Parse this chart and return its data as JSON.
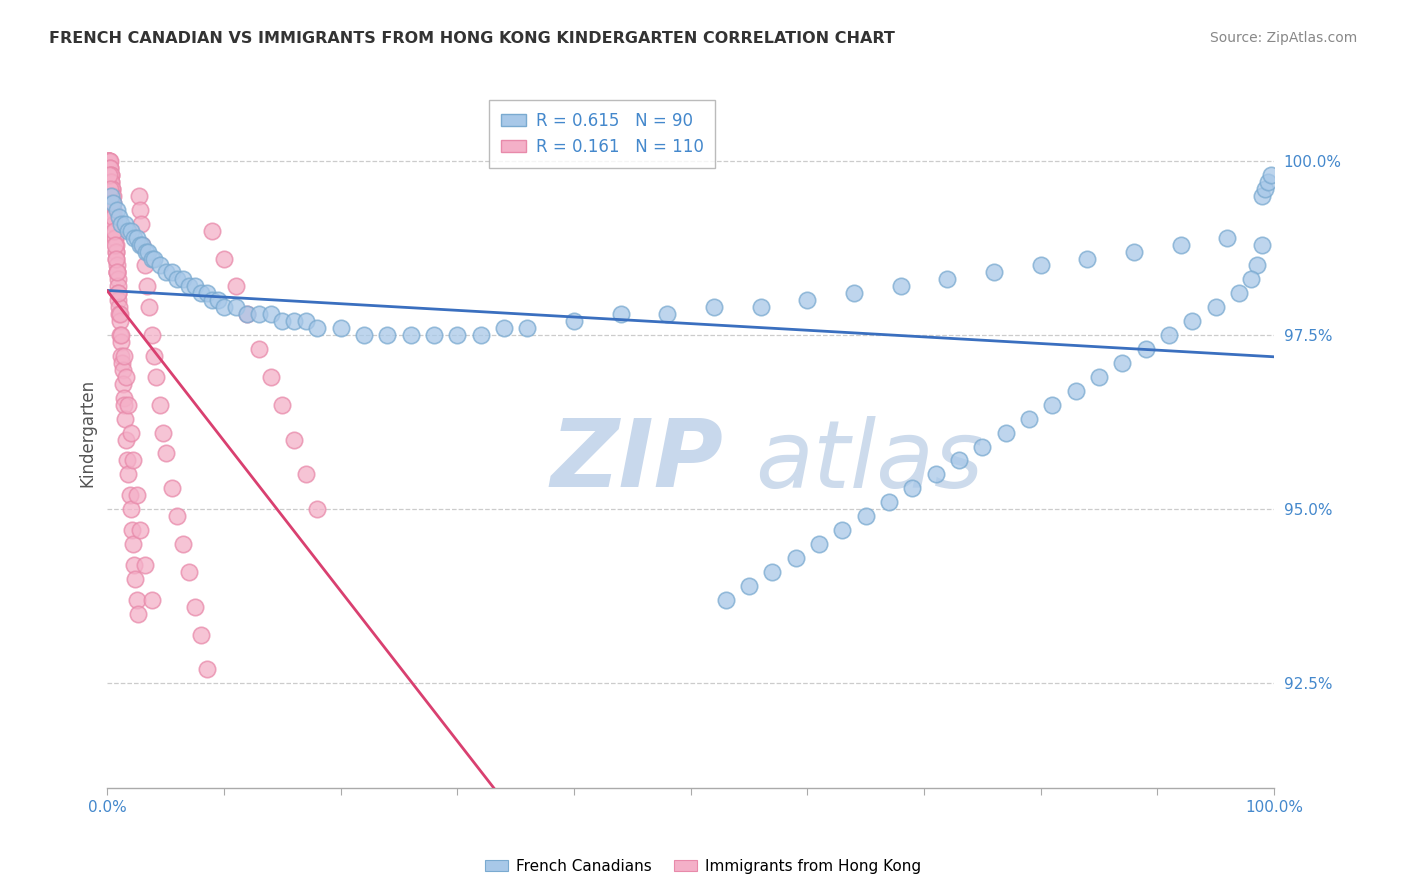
{
  "title": "FRENCH CANADIAN VS IMMIGRANTS FROM HONG KONG KINDERGARTEN CORRELATION CHART",
  "source": "Source: ZipAtlas.com",
  "ylabel": "Kindergarten",
  "ytick_labels": [
    "92.5%",
    "95.0%",
    "97.5%",
    "100.0%"
  ],
  "ytick_values": [
    92.5,
    95.0,
    97.5,
    100.0
  ],
  "legend_blue": "French Canadians",
  "legend_pink": "Immigrants from Hong Kong",
  "R_blue": 0.615,
  "N_blue": 90,
  "R_pink": 0.161,
  "N_pink": 110,
  "blue_color": "#a8c8e8",
  "pink_color": "#f4b0c8",
  "blue_edge_color": "#7aaad0",
  "pink_edge_color": "#e88aaa",
  "blue_line_color": "#3a6fbf",
  "pink_line_color": "#d94070",
  "xlim": [
    0.0,
    100.0
  ],
  "ylim": [
    91.0,
    101.2
  ],
  "grid_color": "#cccccc",
  "background_color": "#ffffff",
  "blue_x": [
    0.3,
    0.5,
    0.8,
    1.0,
    1.2,
    1.5,
    1.8,
    2.0,
    2.3,
    2.5,
    2.8,
    3.0,
    3.3,
    3.5,
    3.8,
    4.0,
    4.5,
    5.0,
    5.5,
    6.0,
    6.5,
    7.0,
    7.5,
    8.0,
    8.5,
    9.0,
    9.5,
    10.0,
    11.0,
    12.0,
    13.0,
    14.0,
    15.0,
    16.0,
    17.0,
    18.0,
    20.0,
    22.0,
    24.0,
    26.0,
    28.0,
    30.0,
    32.0,
    34.0,
    36.0,
    40.0,
    44.0,
    48.0,
    52.0,
    56.0,
    60.0,
    64.0,
    68.0,
    72.0,
    76.0,
    80.0,
    84.0,
    88.0,
    92.0,
    96.0,
    99.0,
    99.2,
    99.5,
    99.7,
    99.0,
    98.5,
    98.0,
    97.0,
    95.0,
    93.0,
    91.0,
    89.0,
    87.0,
    85.0,
    83.0,
    81.0,
    79.0,
    77.0,
    75.0,
    73.0,
    71.0,
    69.0,
    67.0,
    65.0,
    63.0,
    61.0,
    59.0,
    57.0,
    55.0,
    53.0
  ],
  "blue_y": [
    99.5,
    99.4,
    99.3,
    99.2,
    99.1,
    99.1,
    99.0,
    99.0,
    98.9,
    98.9,
    98.8,
    98.8,
    98.7,
    98.7,
    98.6,
    98.6,
    98.5,
    98.4,
    98.4,
    98.3,
    98.3,
    98.2,
    98.2,
    98.1,
    98.1,
    98.0,
    98.0,
    97.9,
    97.9,
    97.8,
    97.8,
    97.8,
    97.7,
    97.7,
    97.7,
    97.6,
    97.6,
    97.5,
    97.5,
    97.5,
    97.5,
    97.5,
    97.5,
    97.6,
    97.6,
    97.7,
    97.8,
    97.8,
    97.9,
    97.9,
    98.0,
    98.1,
    98.2,
    98.3,
    98.4,
    98.5,
    98.6,
    98.7,
    98.8,
    98.9,
    99.5,
    99.6,
    99.7,
    99.8,
    98.8,
    98.5,
    98.3,
    98.1,
    97.9,
    97.7,
    97.5,
    97.3,
    97.1,
    96.9,
    96.7,
    96.5,
    96.3,
    96.1,
    95.9,
    95.7,
    95.5,
    95.3,
    95.1,
    94.9,
    94.7,
    94.5,
    94.3,
    94.1,
    93.9,
    93.7
  ],
  "pink_x": [
    0.05,
    0.08,
    0.1,
    0.12,
    0.15,
    0.18,
    0.2,
    0.22,
    0.25,
    0.28,
    0.3,
    0.32,
    0.35,
    0.38,
    0.4,
    0.42,
    0.45,
    0.48,
    0.5,
    0.52,
    0.55,
    0.58,
    0.6,
    0.62,
    0.65,
    0.68,
    0.7,
    0.72,
    0.75,
    0.78,
    0.8,
    0.82,
    0.85,
    0.88,
    0.9,
    0.92,
    0.95,
    0.98,
    1.0,
    1.05,
    1.1,
    1.15,
    1.2,
    1.25,
    1.3,
    1.35,
    1.4,
    1.45,
    1.5,
    1.6,
    1.7,
    1.8,
    1.9,
    2.0,
    2.1,
    2.2,
    2.3,
    2.4,
    2.5,
    2.6,
    2.7,
    2.8,
    2.9,
    3.0,
    3.2,
    3.4,
    3.6,
    3.8,
    4.0,
    4.2,
    4.5,
    4.8,
    5.0,
    5.5,
    6.0,
    6.5,
    7.0,
    7.5,
    8.0,
    8.5,
    9.0,
    10.0,
    11.0,
    12.0,
    13.0,
    14.0,
    15.0,
    16.0,
    17.0,
    18.0,
    0.15,
    0.25,
    0.35,
    0.45,
    0.55,
    0.65,
    0.75,
    0.85,
    0.95,
    1.05,
    1.2,
    1.4,
    1.6,
    1.8,
    2.0,
    2.2,
    2.5,
    2.8,
    3.2,
    3.8
  ],
  "pink_y": [
    100.0,
    100.0,
    100.0,
    100.0,
    100.0,
    100.0,
    100.0,
    99.9,
    99.9,
    99.8,
    99.8,
    99.7,
    99.7,
    99.6,
    99.6,
    99.5,
    99.5,
    99.4,
    99.3,
    99.3,
    99.2,
    99.1,
    99.1,
    99.0,
    98.9,
    98.9,
    98.8,
    98.7,
    98.7,
    98.6,
    98.5,
    98.4,
    98.4,
    98.3,
    98.2,
    98.1,
    98.0,
    97.9,
    97.8,
    97.7,
    97.5,
    97.4,
    97.2,
    97.1,
    97.0,
    96.8,
    96.6,
    96.5,
    96.3,
    96.0,
    95.7,
    95.5,
    95.2,
    95.0,
    94.7,
    94.5,
    94.2,
    94.0,
    93.7,
    93.5,
    99.5,
    99.3,
    99.1,
    98.8,
    98.5,
    98.2,
    97.9,
    97.5,
    97.2,
    96.9,
    96.5,
    96.1,
    95.8,
    95.3,
    94.9,
    94.5,
    94.1,
    93.6,
    93.2,
    92.7,
    99.0,
    98.6,
    98.2,
    97.8,
    97.3,
    96.9,
    96.5,
    96.0,
    95.5,
    95.0,
    99.8,
    99.6,
    99.4,
    99.2,
    99.0,
    98.8,
    98.6,
    98.4,
    98.1,
    97.8,
    97.5,
    97.2,
    96.9,
    96.5,
    96.1,
    95.7,
    95.2,
    94.7,
    94.2,
    93.7
  ]
}
